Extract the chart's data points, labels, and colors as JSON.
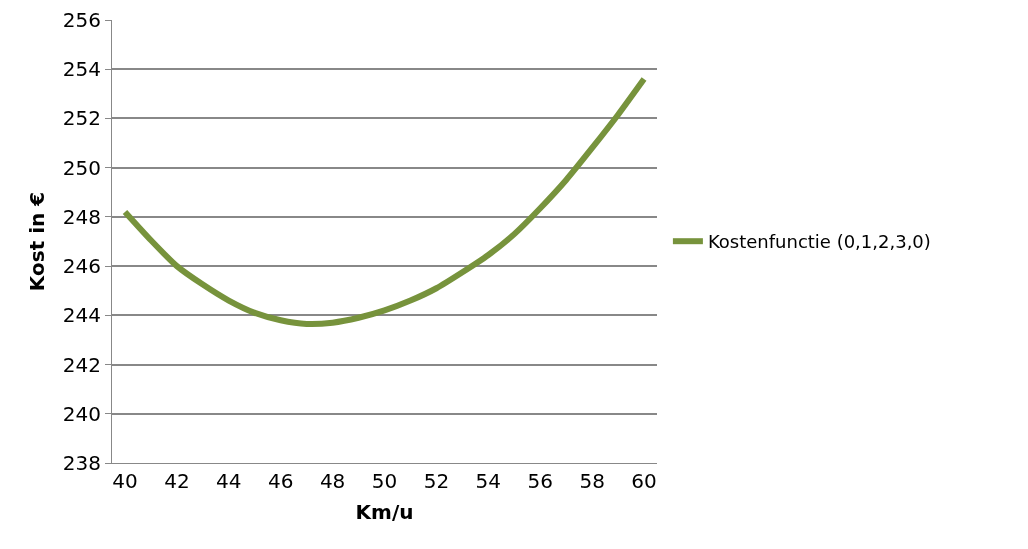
{
  "chart_data": {
    "type": "line",
    "xlabel": "Km/u",
    "ylabel": "Kost in €",
    "x": [
      40,
      41,
      42,
      43,
      44,
      45,
      46,
      47,
      48,
      49,
      50,
      51,
      52,
      53,
      54,
      55,
      56,
      57,
      58,
      59,
      60
    ],
    "series": [
      {
        "name": "Kostenfunctie (0,1,2,3,0)",
        "color": "#77933c",
        "values": [
          248.2,
          247.05,
          246.0,
          245.25,
          244.6,
          244.1,
          243.8,
          243.65,
          243.7,
          243.9,
          244.2,
          244.6,
          245.1,
          245.75,
          246.45,
          247.3,
          248.35,
          249.5,
          250.8,
          252.15,
          253.6
        ]
      }
    ],
    "xlim": [
      39.5,
      60.5
    ],
    "xticks": [
      40,
      42,
      44,
      46,
      48,
      50,
      52,
      54,
      56,
      58,
      60
    ],
    "ylim": [
      238,
      256
    ],
    "yticks": [
      238,
      240,
      242,
      244,
      246,
      248,
      250,
      252,
      254,
      256
    ],
    "grid": "y",
    "legend": "right",
    "marker": "none",
    "line_style": "solid"
  }
}
